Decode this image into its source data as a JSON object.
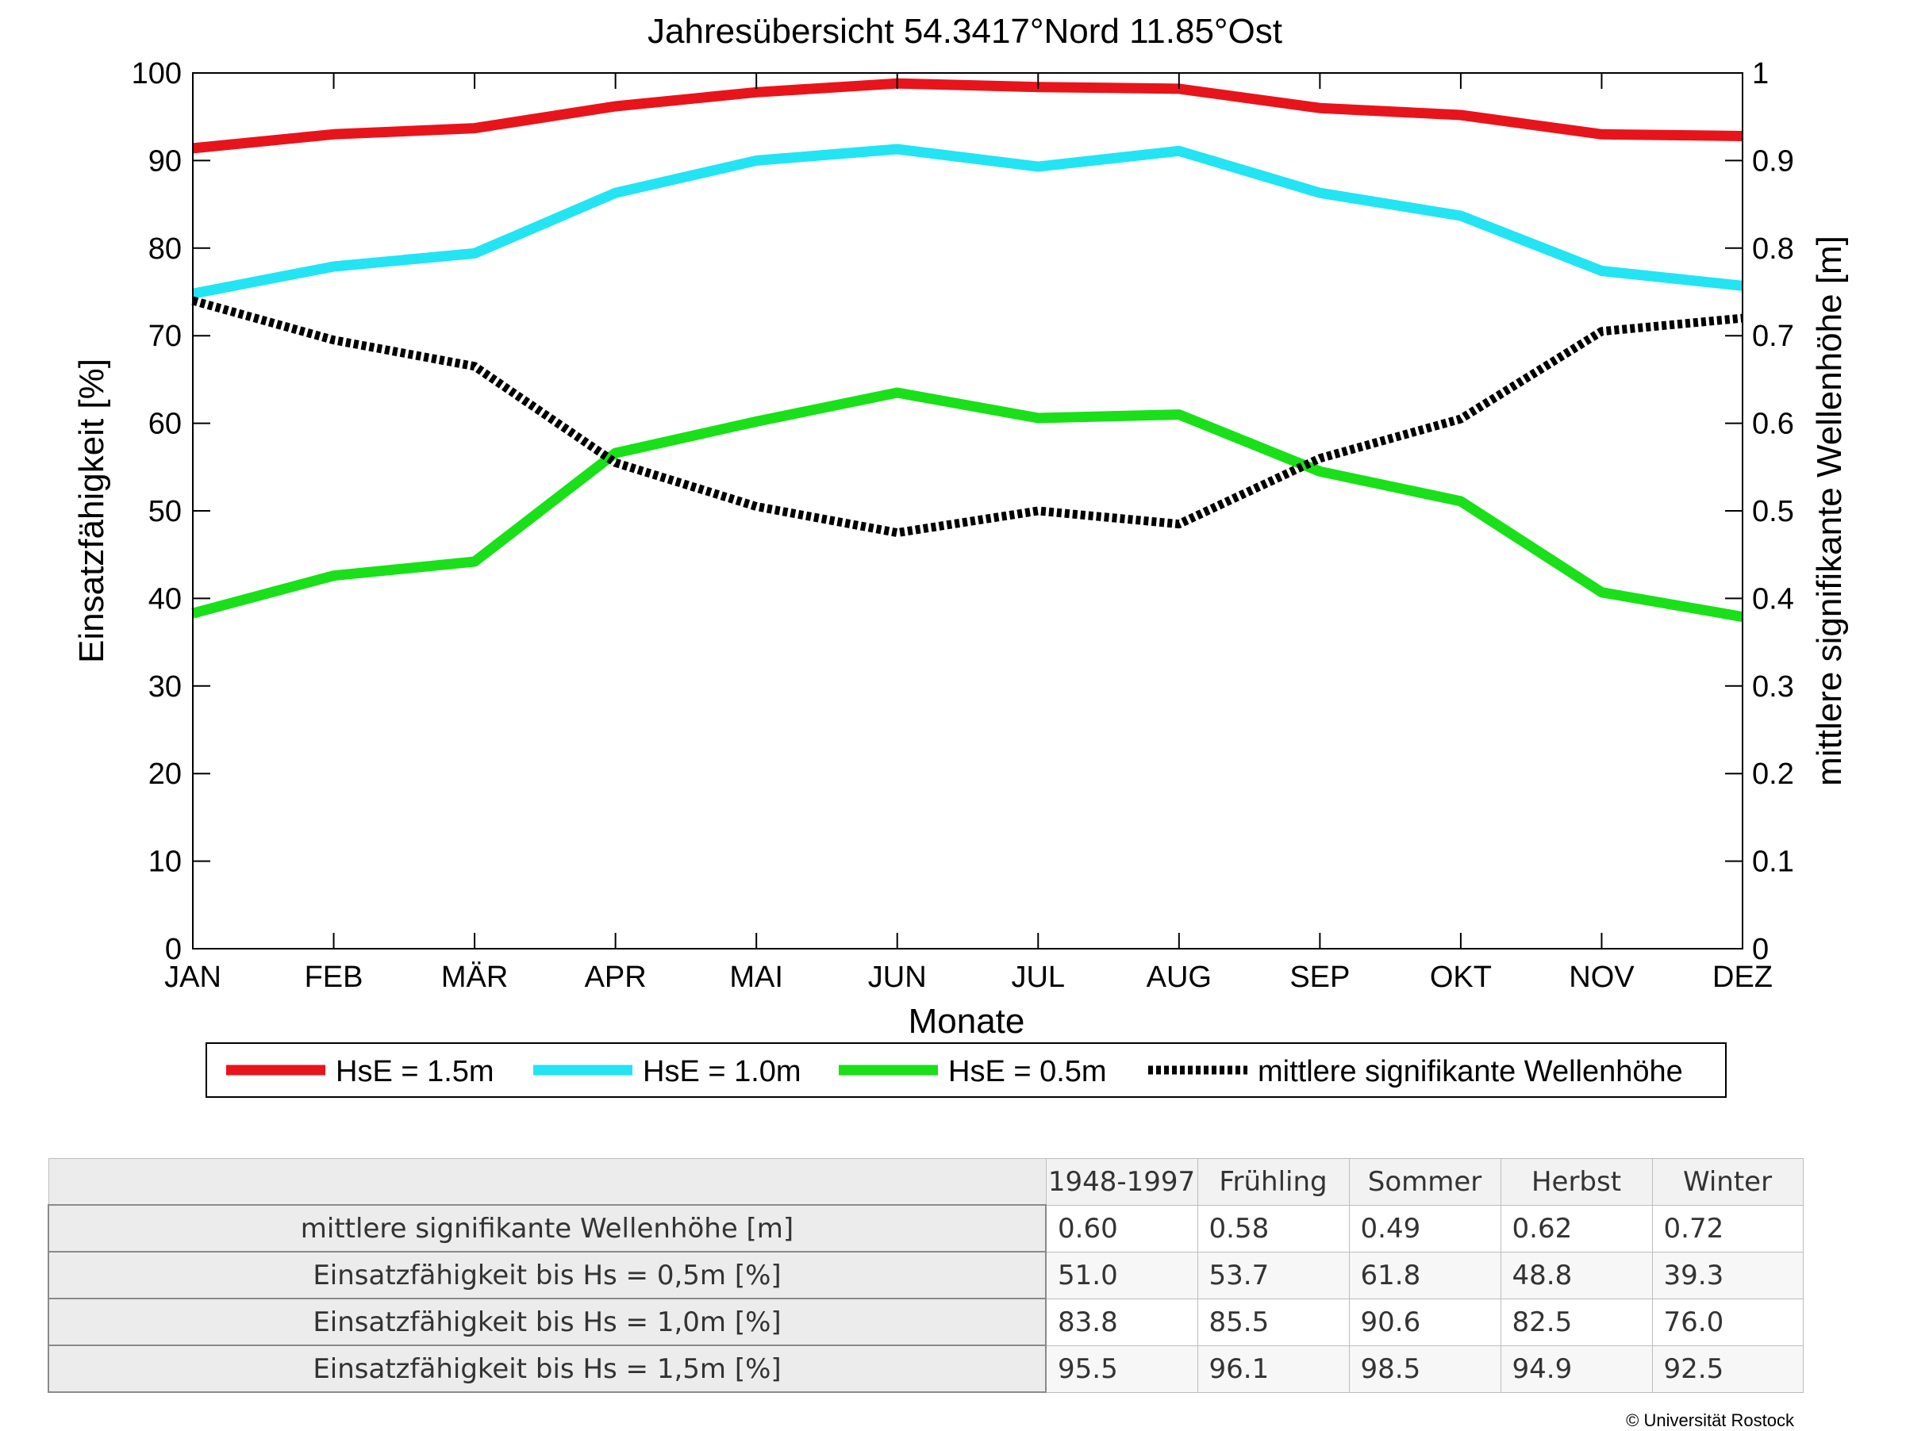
{
  "chart_data": {
    "type": "line",
    "title": "Jahresübersicht  54.3417°Nord  11.85°Ost",
    "xlabel": "Monate",
    "ylabel_left": "Einsatzfähigkeit [%]",
    "ylabel_right": "mittlere signifikante Wellenhöhe [m]",
    "categories": [
      "JAN",
      "FEB",
      "MÄR",
      "APR",
      "MAI",
      "JUN",
      "JUL",
      "AUG",
      "SEP",
      "OKT",
      "NOV",
      "DEZ"
    ],
    "ylim_left": [
      0,
      100
    ],
    "ylim_right": [
      0,
      1
    ],
    "yticks_left": [
      "0",
      "10",
      "20",
      "30",
      "40",
      "50",
      "60",
      "70",
      "80",
      "90",
      "100"
    ],
    "yticks_right": [
      "0",
      "0.1",
      "0.2",
      "0.3",
      "0.4",
      "0.5",
      "0.6",
      "0.7",
      "0.8",
      "0.9",
      "1"
    ],
    "grid": false,
    "legend_position": "bottom",
    "series": [
      {
        "name": "HsE = 1.5m",
        "axis": "left",
        "color": "#e8141c",
        "style": "solid",
        "values": [
          91.4,
          93.0,
          93.7,
          96.2,
          97.8,
          98.8,
          98.4,
          98.2,
          96.0,
          95.2,
          93.0,
          92.8
        ]
      },
      {
        "name": "HsE = 1.0m",
        "axis": "left",
        "color": "#23e4f2",
        "style": "solid",
        "values": [
          74.8,
          77.9,
          79.4,
          86.3,
          90.0,
          91.3,
          89.3,
          91.1,
          86.3,
          83.7,
          77.4,
          75.7
        ]
      },
      {
        "name": "HsE = 0.5m",
        "axis": "left",
        "color": "#19e019",
        "style": "solid",
        "values": [
          38.3,
          42.6,
          44.2,
          56.6,
          60.2,
          63.5,
          60.6,
          61.0,
          54.5,
          51.1,
          40.7,
          37.9
        ]
      },
      {
        "name": "mittlere signifikante Wellenhöhe",
        "axis": "right",
        "color": "#000000",
        "style": "dotted",
        "values": [
          0.74,
          0.695,
          0.665,
          0.555,
          0.505,
          0.475,
          0.5,
          0.485,
          0.56,
          0.605,
          0.705,
          0.72
        ]
      }
    ]
  },
  "table": {
    "headers": [
      "1948-1997",
      "Frühling",
      "Sommer",
      "Herbst",
      "Winter"
    ],
    "rows": [
      {
        "label": "mittlere signifikante Wellenhöhe [m]",
        "values": [
          "0.60",
          "0.58",
          "0.49",
          "0.62",
          "0.72"
        ]
      },
      {
        "label": "Einsatzfähigkeit bis Hs = 0,5m [%]",
        "values": [
          "51.0",
          "53.7",
          "61.8",
          "48.8",
          "39.3"
        ]
      },
      {
        "label": "Einsatzfähigkeit bis Hs = 1,0m [%]",
        "values": [
          "83.8",
          "85.5",
          "90.6",
          "82.5",
          "76.0"
        ]
      },
      {
        "label": "Einsatzfähigkeit bis Hs = 1,5m [%]",
        "values": [
          "95.5",
          "96.1",
          "98.5",
          "94.9",
          "92.5"
        ]
      }
    ]
  },
  "copyright": "© Universität Rostock"
}
